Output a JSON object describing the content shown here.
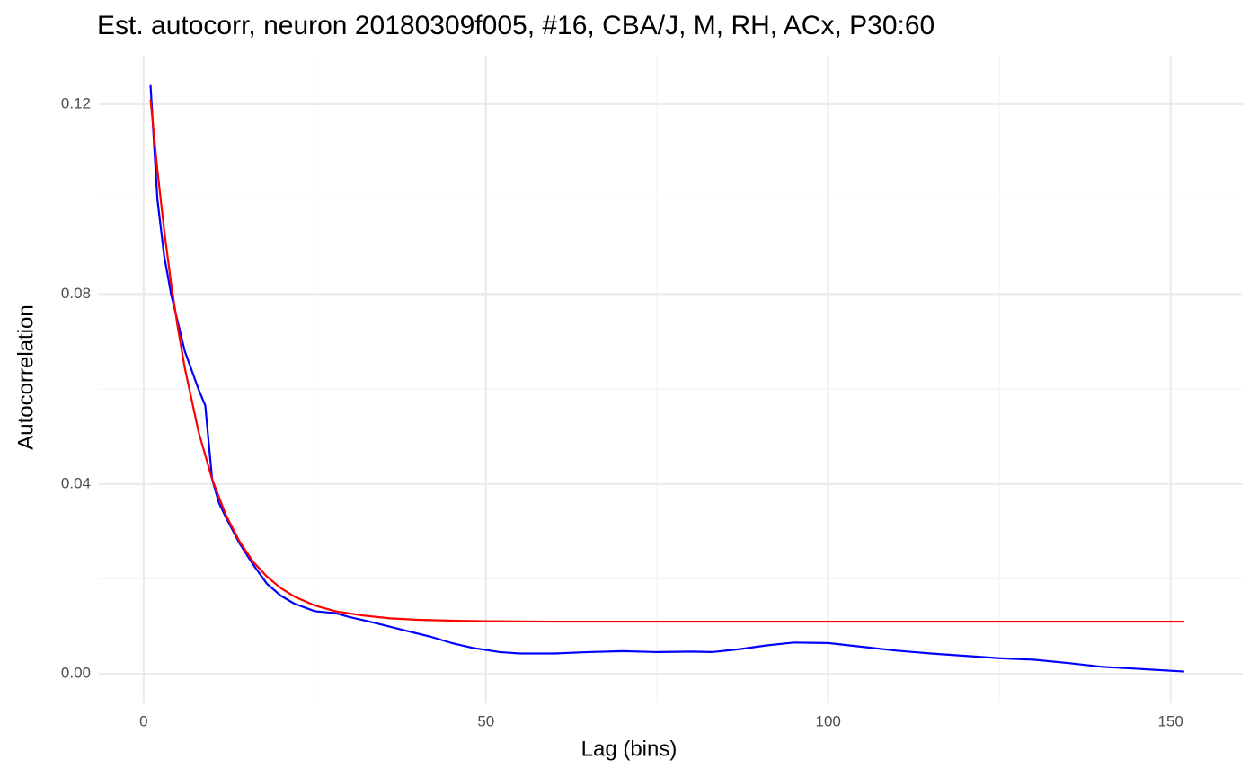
{
  "chart_data": {
    "type": "line",
    "title": "Est. autocorr, neuron 20180309f005, #16, CBA/J, M, RH, ACx, P30:60",
    "xlabel": "Lag (bins)",
    "ylabel": "Autocorrelation",
    "xlim": [
      -6.55,
      160.55
    ],
    "ylim": [
      -0.0062,
      0.1302
    ],
    "xticks": [
      0,
      50,
      100,
      150
    ],
    "yticks": [
      {
        "value": 0,
        "label": "0.00"
      },
      {
        "value": 0.04,
        "label": "0.04"
      },
      {
        "value": 0.08,
        "label": "0.08"
      },
      {
        "value": 0.12,
        "label": "0.12"
      }
    ],
    "xminor": [
      25,
      75,
      125
    ],
    "yminor": [
      0.02,
      0.06,
      0.1
    ],
    "grid": true,
    "series": [
      {
        "color": "#0000ff",
        "x": [
          1,
          2,
          3,
          4,
          5,
          6,
          7,
          8,
          9,
          10,
          11,
          12,
          14,
          16,
          18,
          20,
          22,
          25,
          28,
          30,
          33,
          35,
          38,
          42,
          45,
          48,
          52,
          55,
          60,
          65,
          70,
          75,
          80,
          83,
          87,
          91,
          95,
          100,
          105,
          110,
          115,
          120,
          125,
          130,
          135,
          140,
          145,
          152
        ],
        "values": [
          0.124,
          0.1,
          0.088,
          0.08,
          0.074,
          0.068,
          0.064,
          0.06,
          0.0565,
          0.041,
          0.036,
          0.033,
          0.0275,
          0.023,
          0.019,
          0.0165,
          0.0148,
          0.0132,
          0.0128,
          0.012,
          0.011,
          0.0103,
          0.0092,
          0.0078,
          0.0065,
          0.0055,
          0.0046,
          0.0043,
          0.0043,
          0.0046,
          0.0048,
          0.0046,
          0.0047,
          0.0046,
          0.0052,
          0.006,
          0.0066,
          0.0065,
          0.0057,
          0.0049,
          0.0043,
          0.0038,
          0.0033,
          0.003,
          0.0023,
          0.0015,
          0.0011,
          0.0005
        ]
      },
      {
        "color": "#ff0000",
        "x": [
          1,
          2,
          3,
          4,
          5,
          6,
          8,
          10,
          12,
          14,
          16,
          18,
          20,
          22,
          25,
          28,
          32,
          36,
          40,
          45,
          50,
          60,
          100,
          152
        ],
        "values": [
          0.121,
          0.1062,
          0.0934,
          0.0823,
          0.0728,
          0.0645,
          0.0511,
          0.041,
          0.0335,
          0.0279,
          0.0236,
          0.0205,
          0.0181,
          0.0163,
          0.0144,
          0.0132,
          0.0123,
          0.0117,
          0.0114,
          0.0112,
          0.0111,
          0.011,
          0.011,
          0.011
        ]
      }
    ]
  }
}
